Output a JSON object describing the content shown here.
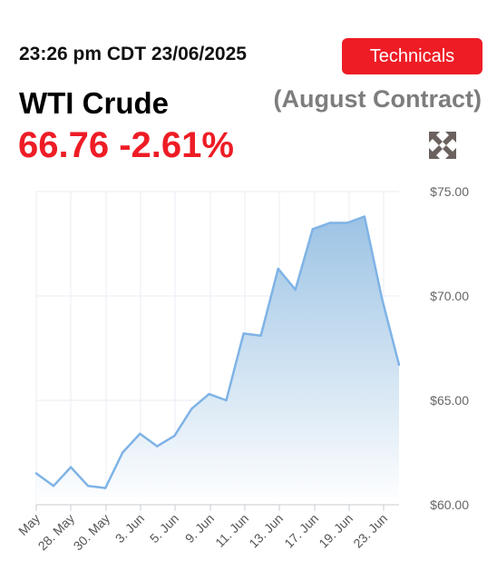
{
  "header": {
    "timestamp": "23:26 pm CDT 23/06/2025",
    "technicals_label": "Technicals",
    "title": "WTI Crude",
    "contract": "(August Contract)",
    "price": "66.76",
    "change": "-2.61%",
    "expand_icon": "expand-arrows-icon"
  },
  "colors": {
    "accent": "#ee1c25",
    "line": "#7fb3e6",
    "area_top": "#9cc3e4",
    "area_bottom": "#ffffff",
    "grid": "#eaeef3",
    "icon": "#6b6260"
  },
  "chart_data": {
    "type": "area",
    "ylim": [
      60,
      75
    ],
    "y_ticks": [
      {
        "value": 75,
        "label": "$75.00"
      },
      {
        "value": 70,
        "label": "$70.00"
      },
      {
        "value": 65,
        "label": "$65.00"
      },
      {
        "value": 60,
        "label": "$60.00"
      }
    ],
    "x_ticks": [
      "May",
      "28. May",
      "30. May",
      "3. Jun",
      "5. Jun",
      "9. Jun",
      "11. Jun",
      "13. Jun",
      "17. Jun",
      "19. Jun",
      "23. Jun"
    ],
    "x": [
      "2025-05-23",
      "2025-05-27",
      "2025-05-28",
      "2025-05-29",
      "2025-05-30",
      "2025-06-02",
      "2025-06-03",
      "2025-06-04",
      "2025-06-05",
      "2025-06-06",
      "2025-06-09",
      "2025-06-10",
      "2025-06-11",
      "2025-06-12",
      "2025-06-13",
      "2025-06-16",
      "2025-06-17",
      "2025-06-18",
      "2025-06-19",
      "2025-06-20",
      "2025-06-23",
      "2025-06-24"
    ],
    "values": [
      61.5,
      60.9,
      61.8,
      60.9,
      60.8,
      62.5,
      63.4,
      62.8,
      63.3,
      64.6,
      65.3,
      65.0,
      68.2,
      68.1,
      71.3,
      70.3,
      73.2,
      73.5,
      73.5,
      73.8,
      69.9,
      66.7
    ]
  }
}
